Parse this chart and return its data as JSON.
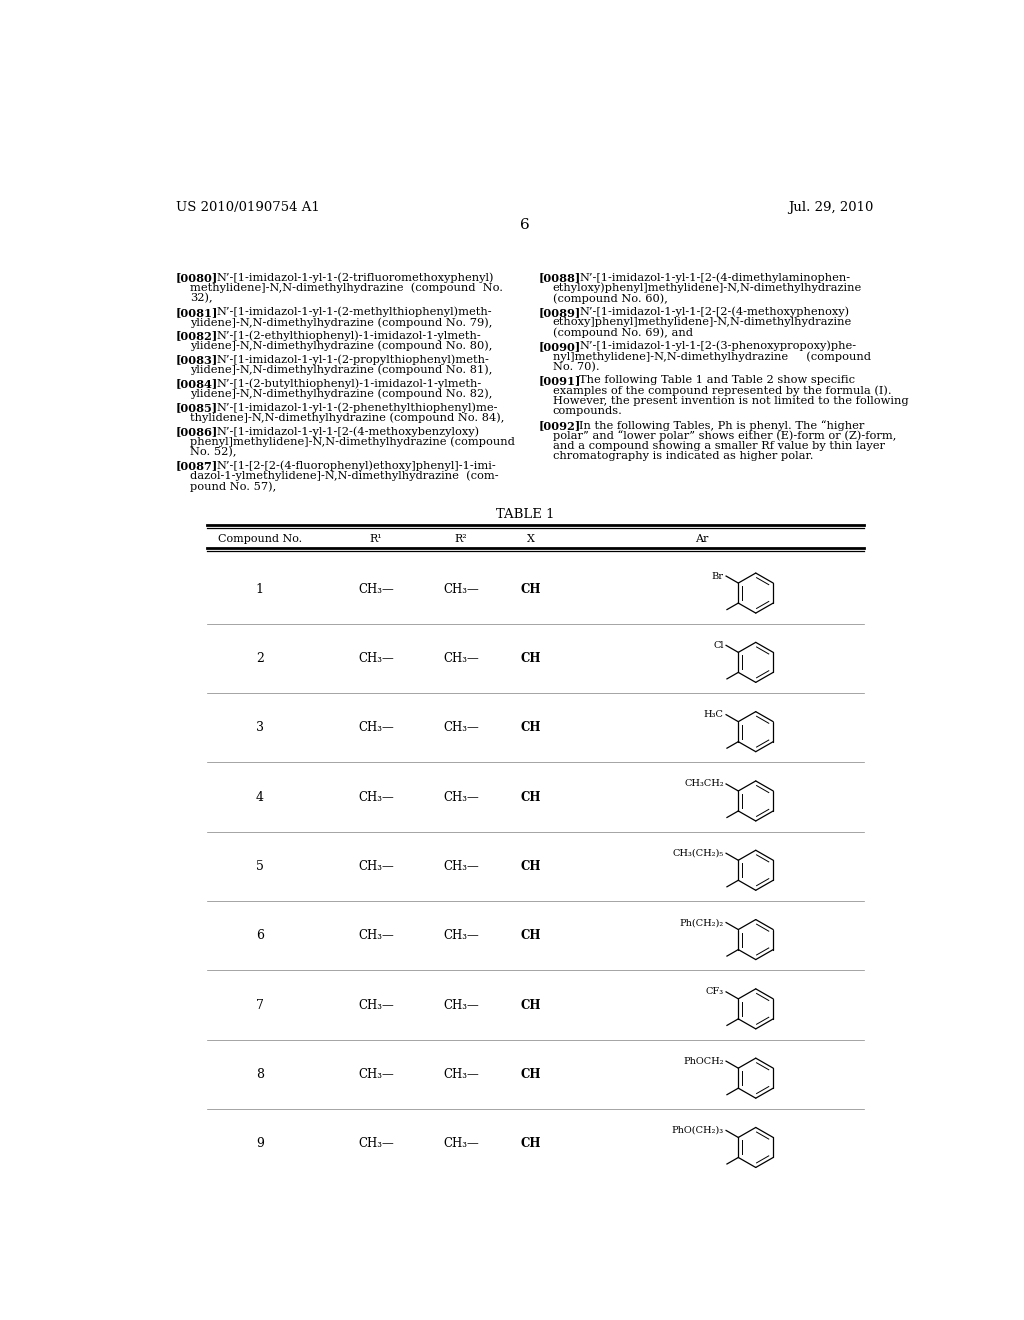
{
  "page_header_left": "US 2010/0190754 A1",
  "page_header_right": "Jul. 29, 2010",
  "page_number": "6",
  "background_color": "#ffffff",
  "left_paragraphs": [
    {
      "tag": "[0080]",
      "lines": [
        "N’-[1-imidazol-1-yl-1-(2-trifluoromethoxyphenyl)",
        "    methylidene]-N,N-dimethylhydrazine  (compound  No.",
        "    32),"
      ]
    },
    {
      "tag": "[0081]",
      "lines": [
        "N’-[1-imidazol-1-yl-1-(2-methylthiophenyl)meth-",
        "    ylidene]-N,N-dimethylhydrazine (compound No. 79),"
      ]
    },
    {
      "tag": "[0082]",
      "lines": [
        "N’-[1-(2-ethylthiophenyl)-1-imidazol-1-ylmeth-",
        "    ylidene]-N,N-dimethylhydrazine (compound No. 80),"
      ]
    },
    {
      "tag": "[0083]",
      "lines": [
        "N’-[1-imidazol-1-yl-1-(2-propylthiophenyl)meth-",
        "    ylidene]-N,N-dimethylhydrazine (compound No. 81),"
      ]
    },
    {
      "tag": "[0084]",
      "lines": [
        "N’-[1-(2-butylthiophenyl)-1-imidazol-1-ylmeth-",
        "    ylidene]-N,N-dimethylhydrazine (compound No. 82),"
      ]
    },
    {
      "tag": "[0085]",
      "lines": [
        "N’-[1-imidazol-1-yl-1-(2-phenethylthiophenyl)me-",
        "    thylidene]-N,N-dimethylhydrazine (compound No. 84),"
      ]
    },
    {
      "tag": "[0086]",
      "lines": [
        "N’-[1-imidazol-1-yl-1-[2-(4-methoxybenzyloxy)",
        "    phenyl]methylidene]-N,N-dimethylhydrazine (compound",
        "    No. 52),"
      ]
    },
    {
      "tag": "[0087]",
      "lines": [
        "N’-[1-[2-[2-(4-fluorophenyl)ethoxy]phenyl]-1-imi-",
        "    dazol-1-ylmethylidene]-N,N-dimethylhydrazine  (com-",
        "    pound No. 57),"
      ]
    }
  ],
  "right_paragraphs": [
    {
      "tag": "[0088]",
      "lines": [
        "N’-[1-imidazol-1-yl-1-[2-(4-dimethylaminophen-",
        "    ethyloxy)phenyl]methylidene]-N,N-dimethylhydrazine",
        "    (compound No. 60),"
      ]
    },
    {
      "tag": "[0089]",
      "lines": [
        "N’-[1-imidazol-1-yl-1-[2-[2-(4-methoxyphenoxy)",
        "    ethoxy]phenyl]methylidene]-N,N-dimethylhydrazine",
        "    (compound No. 69), and"
      ]
    },
    {
      "tag": "[0090]",
      "lines": [
        "N’-[1-imidazol-1-yl-1-[2-(3-phenoxypropoxy)phe-",
        "    nyl]methylidene]-N,N-dimethylhydrazine     (compound",
        "    No. 70)."
      ]
    },
    {
      "tag": "[0091]",
      "lines": [
        "The following Table 1 and Table 2 show specific",
        "    examples of the compound represented by the formula (I).",
        "    However, the present invention is not limited to the following",
        "    compounds."
      ]
    },
    {
      "tag": "[0092]",
      "lines": [
        "In the following Tables, Ph is phenyl. The “higher",
        "    polar” and “lower polar” shows either (E)-form or (Z)-form,",
        "    and a compound showing a smaller Rf value by thin layer",
        "    chromatography is indicated as higher polar."
      ]
    }
  ],
  "table_title": "TABLE 1",
  "table_columns": [
    "Compound No.",
    "R¹",
    "R²",
    "X",
    "Ar"
  ],
  "table_rows": [
    {
      "no": "1",
      "r1": "CH₃—",
      "r2": "CH₃—",
      "x": "CH",
      "ar_label": "Br"
    },
    {
      "no": "2",
      "r1": "CH₃—",
      "r2": "CH₃—",
      "x": "CH",
      "ar_label": "Cl"
    },
    {
      "no": "3",
      "r1": "CH₃—",
      "r2": "CH₃—",
      "x": "CH",
      "ar_label": "H₃C"
    },
    {
      "no": "4",
      "r1": "CH₃—",
      "r2": "CH₃—",
      "x": "CH",
      "ar_label": "CH₃CH₂"
    },
    {
      "no": "5",
      "r1": "CH₃—",
      "r2": "CH₃—",
      "x": "CH",
      "ar_label": "CH₃(CH₂)₅"
    },
    {
      "no": "6",
      "r1": "CH₃—",
      "r2": "CH₃—",
      "x": "CH",
      "ar_label": "Ph(CH₂)₂"
    },
    {
      "no": "7",
      "r1": "CH₃—",
      "r2": "CH₃—",
      "x": "CH",
      "ar_label": "CF₃"
    },
    {
      "no": "8",
      "r1": "CH₃—",
      "r2": "CH₃—",
      "x": "CH",
      "ar_label": "PhOCH₂"
    },
    {
      "no": "9",
      "r1": "CH₃—",
      "r2": "CH₃—",
      "x": "CH",
      "ar_label": "PhO(CH₂)₃"
    }
  ]
}
